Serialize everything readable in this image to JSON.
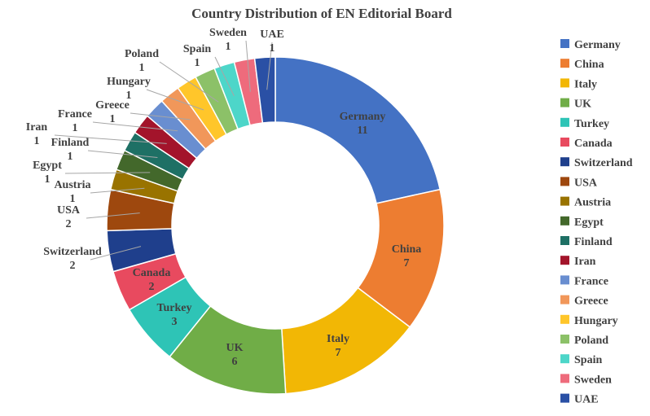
{
  "chart_data": {
    "type": "pie",
    "title": "Country Distribution of EN Editorial Board",
    "donut": true,
    "legend_position": "right",
    "categories": [
      "Germany",
      "China",
      "Italy",
      "UK",
      "Turkey",
      "Canada",
      "Switzerland",
      "USA",
      "Austria",
      "Egypt",
      "Finland",
      "Iran",
      "France",
      "Greece",
      "Hungary",
      "Poland",
      "Spain",
      "Sweden",
      "UAE"
    ],
    "values": [
      11,
      7,
      7,
      6,
      3,
      2,
      2,
      2,
      1,
      1,
      1,
      1,
      1,
      1,
      1,
      1,
      1,
      1,
      1
    ],
    "colors": [
      "#4472C4",
      "#ED7D31",
      "#F2B705",
      "#70AD47",
      "#2EC4B6",
      "#E84A5F",
      "#1F3F8C",
      "#9E480E",
      "#997300",
      "#43682B",
      "#1E7065",
      "#A3142B",
      "#698ED0",
      "#F1975A",
      "#FFC62A",
      "#8CC168",
      "#4DD6C9",
      "#EE6B7C",
      "#2A50A5"
    ]
  }
}
